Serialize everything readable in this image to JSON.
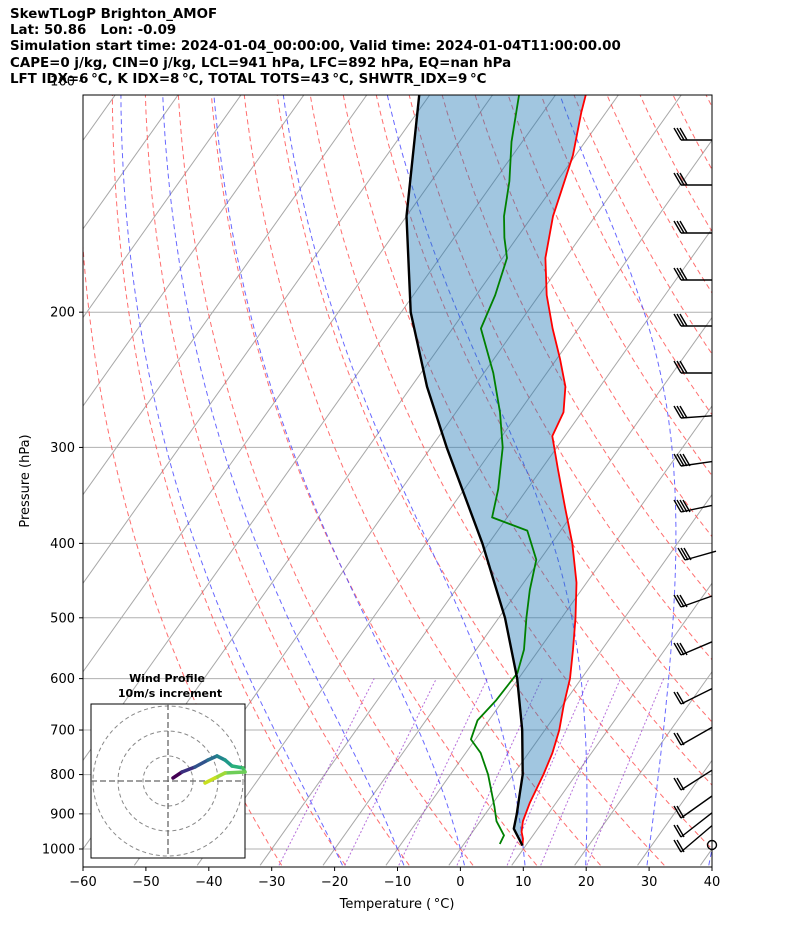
{
  "header": {
    "line1": "SkewTLogP Brighton_AMOF",
    "line2": "Lat: 50.86   Lon: -0.09",
    "line3": "Simulation start time: 2024-01-04_00:00:00, Valid time: 2024-01-04T11:00:00.00",
    "line4": "CAPE=0 j/kg, CIN=0 j/kg, LCL=941 hPa, LFC=892 hPa, EQ=nan hPa",
    "line5": "LFT IDX=6 °C, K IDX=8 °C, TOTAL TOTS=43 °C, SHWTR_IDX=9 °C"
  },
  "chart_data": {
    "type": "line",
    "subtype": "skew-T log-P diagram",
    "xlabel": "Temperature ( °C)",
    "ylabel": "Pressure (hPa)",
    "xlim": [
      -60,
      40
    ],
    "ylim": [
      1050,
      100
    ],
    "yscale": "log",
    "grid": true,
    "x_ticks": [
      "−60",
      "−50",
      "−40",
      "−30",
      "−20",
      "−10",
      "0",
      "10",
      "20",
      "30",
      "40"
    ],
    "y_ticks": [
      "100",
      "200",
      "300",
      "400",
      "500",
      "600",
      "700",
      "800",
      "900",
      "1000"
    ],
    "series": [
      {
        "role": "temperature",
        "color": "#ff0000",
        "points": [
          {
            "p": 990,
            "t": 9.5
          },
          {
            "p": 970,
            "t": 8.8
          },
          {
            "p": 950,
            "t": 7.8
          },
          {
            "p": 920,
            "t": 6.8
          },
          {
            "p": 870,
            "t": 5.8
          },
          {
            "p": 800,
            "t": 4.8
          },
          {
            "p": 750,
            "t": 3.8
          },
          {
            "p": 700,
            "t": 2.3
          },
          {
            "p": 650,
            "t": 0.2
          },
          {
            "p": 600,
            "t": -1.8
          },
          {
            "p": 550,
            "t": -4.6
          },
          {
            "p": 500,
            "t": -7.8
          },
          {
            "p": 450,
            "t": -11.6
          },
          {
            "p": 400,
            "t": -16.7
          },
          {
            "p": 360,
            "t": -21.8
          },
          {
            "p": 320,
            "t": -27.4
          },
          {
            "p": 290,
            "t": -32.0
          },
          {
            "p": 270,
            "t": -32.9
          },
          {
            "p": 250,
            "t": -35.5
          },
          {
            "p": 230,
            "t": -39.5
          },
          {
            "p": 210,
            "t": -44.1
          },
          {
            "p": 190,
            "t": -48.8
          },
          {
            "p": 170,
            "t": -53.2
          },
          {
            "p": 150,
            "t": -56.7
          },
          {
            "p": 140,
            "t": -58.1
          },
          {
            "p": 125,
            "t": -60.4
          },
          {
            "p": 110,
            "t": -63.9
          },
          {
            "p": 100,
            "t": -66.2
          }
        ]
      },
      {
        "role": "dewpoint",
        "color": "#008000",
        "points": [
          {
            "p": 985,
            "t": 5.7
          },
          {
            "p": 960,
            "t": 5.4
          },
          {
            "p": 920,
            "t": 2.6
          },
          {
            "p": 880,
            "t": 0.6
          },
          {
            "p": 800,
            "t": -4.0
          },
          {
            "p": 750,
            "t": -7.6
          },
          {
            "p": 720,
            "t": -10.7
          },
          {
            "p": 680,
            "t": -11.8
          },
          {
            "p": 640,
            "t": -11.1
          },
          {
            "p": 590,
            "t": -10.8
          },
          {
            "p": 550,
            "t": -12.4
          },
          {
            "p": 500,
            "t": -15.6
          },
          {
            "p": 460,
            "t": -18.2
          },
          {
            "p": 420,
            "t": -20.6
          },
          {
            "p": 385,
            "t": -25.3
          },
          {
            "p": 370,
            "t": -32.4
          },
          {
            "p": 340,
            "t": -34.6
          },
          {
            "p": 300,
            "t": -38.6
          },
          {
            "p": 270,
            "t": -43.0
          },
          {
            "p": 240,
            "t": -48.5
          },
          {
            "p": 210,
            "t": -55.5
          },
          {
            "p": 190,
            "t": -57.0
          },
          {
            "p": 170,
            "t": -59.3
          },
          {
            "p": 160,
            "t": -62.0
          },
          {
            "p": 150,
            "t": -64.5
          },
          {
            "p": 135,
            "t": -67.6
          },
          {
            "p": 120,
            "t": -71.7
          },
          {
            "p": 100,
            "t": -77.0
          }
        ]
      },
      {
        "role": "parcel",
        "color": "#000000",
        "points": [
          {
            "p": 990,
            "t": 9.5
          },
          {
            "p": 941,
            "t": 6.2
          },
          {
            "p": 900,
            "t": 5.0
          },
          {
            "p": 850,
            "t": 3.3
          },
          {
            "p": 800,
            "t": 1.5
          },
          {
            "p": 700,
            "t": -3.6
          },
          {
            "p": 600,
            "t": -10.2
          },
          {
            "p": 500,
            "t": -19.0
          },
          {
            "p": 400,
            "t": -31.0
          },
          {
            "p": 300,
            "t": -47.5
          },
          {
            "p": 250,
            "t": -57.5
          },
          {
            "p": 200,
            "t": -68.5
          },
          {
            "p": 150,
            "t": -80.0
          },
          {
            "p": 100,
            "t": -93.0
          }
        ]
      }
    ],
    "wind_profile_inset": {
      "title": "Wind Profile",
      "subtitle": "10m/s increment"
    }
  }
}
